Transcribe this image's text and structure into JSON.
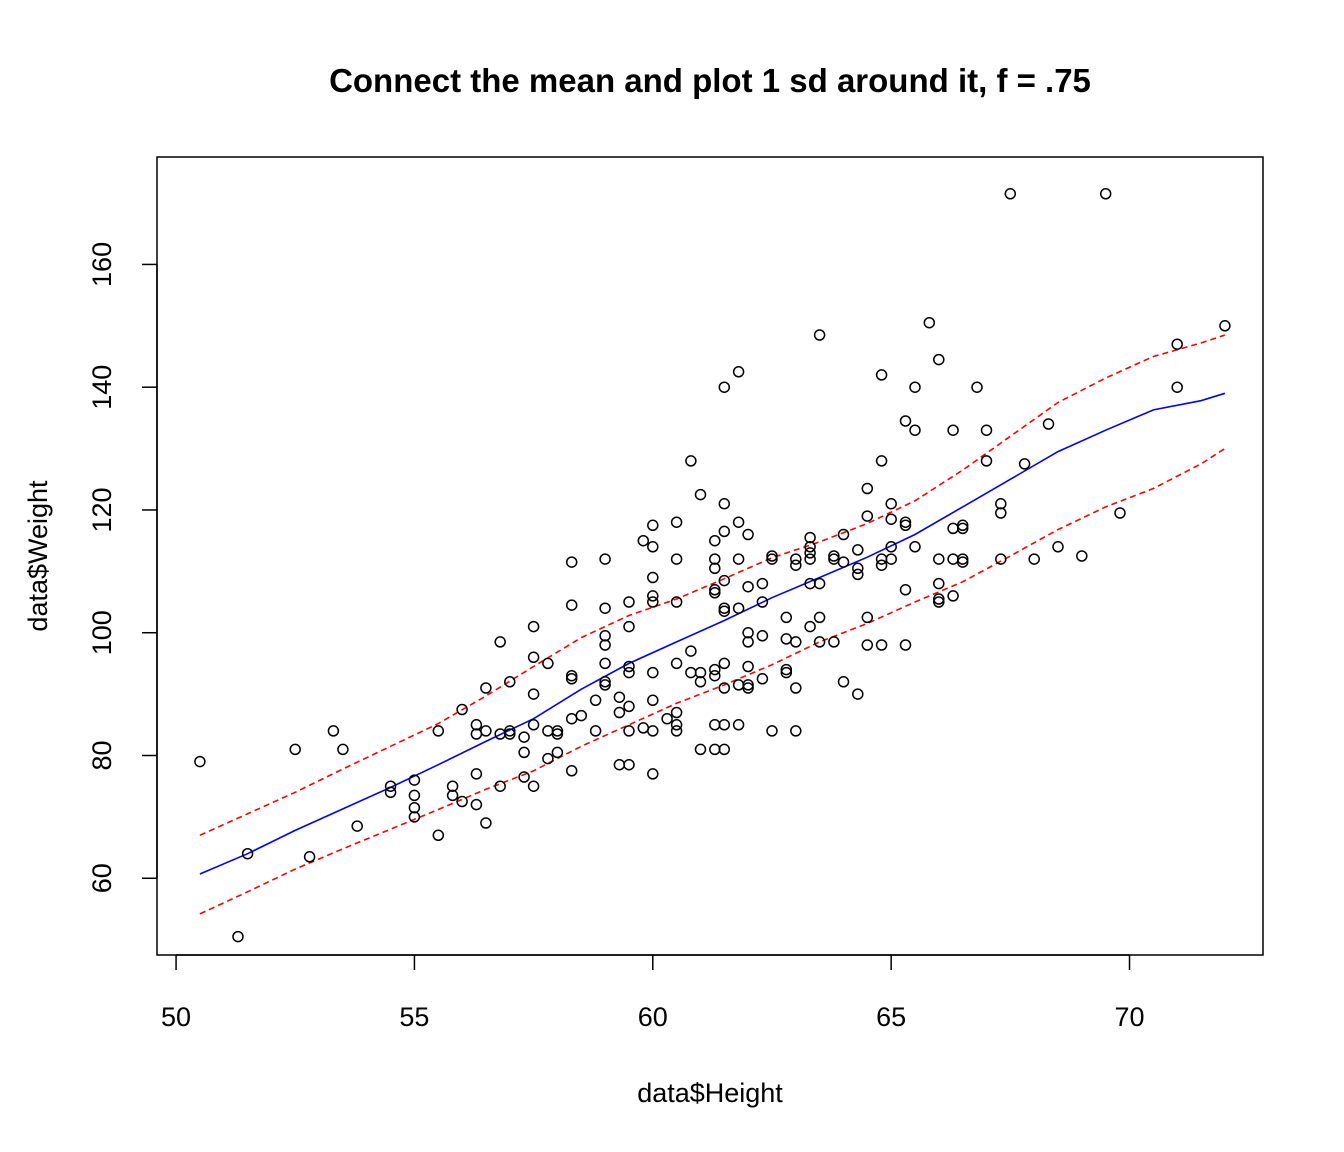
{
  "chart_data": {
    "type": "scatter",
    "title": "Connect the mean and plot 1 sd around it, f = .75",
    "xlabel": "data$Height",
    "ylabel": "data$Weight",
    "xlim": [
      49.6,
      72.8
    ],
    "ylim": [
      47.5,
      177.5
    ],
    "x_ticks": [
      50,
      55,
      60,
      65,
      70
    ],
    "y_ticks": [
      60,
      80,
      100,
      120,
      140,
      160
    ],
    "grid": false,
    "legend": "none",
    "colors": {
      "points": "#000000",
      "mean_line": "#0000FF",
      "sd_lines": "#FF0000"
    },
    "points": [
      [
        50.5,
        79
      ],
      [
        51.3,
        50.5
      ],
      [
        51.5,
        64
      ],
      [
        52.5,
        81
      ],
      [
        52.8,
        63.5
      ],
      [
        53.3,
        84
      ],
      [
        53.5,
        81
      ],
      [
        53.8,
        68.5
      ],
      [
        54.5,
        75
      ],
      [
        54.5,
        74
      ],
      [
        55,
        76
      ],
      [
        55,
        73.5
      ],
      [
        55,
        71.5
      ],
      [
        55,
        70
      ],
      [
        55.5,
        84
      ],
      [
        55.5,
        67
      ],
      [
        55.8,
        75
      ],
      [
        55.8,
        73.5
      ],
      [
        56,
        87.5
      ],
      [
        56,
        72.5
      ],
      [
        56.3,
        85
      ],
      [
        56.3,
        83.5
      ],
      [
        56.3,
        77
      ],
      [
        56.3,
        72
      ],
      [
        56.5,
        91
      ],
      [
        56.5,
        84
      ],
      [
        56.5,
        69
      ],
      [
        56.8,
        98.5
      ],
      [
        56.8,
        83.5
      ],
      [
        56.8,
        75
      ],
      [
        57,
        92
      ],
      [
        57,
        84
      ],
      [
        57,
        83.5
      ],
      [
        57.3,
        83
      ],
      [
        57.3,
        80.5
      ],
      [
        57.3,
        76.5
      ],
      [
        57.5,
        101
      ],
      [
        57.5,
        96
      ],
      [
        57.5,
        90
      ],
      [
        57.5,
        85
      ],
      [
        57.5,
        75
      ],
      [
        57.8,
        95
      ],
      [
        57.8,
        84
      ],
      [
        57.8,
        79.5
      ],
      [
        58,
        84
      ],
      [
        58,
        83.5
      ],
      [
        58,
        80.5
      ],
      [
        58.3,
        111.5
      ],
      [
        58.3,
        104.5
      ],
      [
        58.3,
        93
      ],
      [
        58.3,
        92.5
      ],
      [
        58.3,
        86
      ],
      [
        58.3,
        77.5
      ],
      [
        58.5,
        86.5
      ],
      [
        58.8,
        89
      ],
      [
        58.8,
        84
      ],
      [
        59,
        112
      ],
      [
        59,
        104
      ],
      [
        59,
        99.5
      ],
      [
        59,
        98
      ],
      [
        59,
        95
      ],
      [
        59,
        92
      ],
      [
        59,
        91.5
      ],
      [
        59.3,
        89.5
      ],
      [
        59.3,
        87
      ],
      [
        59.3,
        78.5
      ],
      [
        59.5,
        105
      ],
      [
        59.5,
        101
      ],
      [
        59.5,
        94.5
      ],
      [
        59.5,
        93.5
      ],
      [
        59.5,
        88
      ],
      [
        59.5,
        84
      ],
      [
        59.5,
        78.5
      ],
      [
        59.8,
        115
      ],
      [
        59.8,
        84.5
      ],
      [
        60,
        117.5
      ],
      [
        60,
        114
      ],
      [
        60,
        109
      ],
      [
        60,
        106
      ],
      [
        60,
        105
      ],
      [
        60,
        93.5
      ],
      [
        60,
        89
      ],
      [
        60,
        84
      ],
      [
        60,
        77
      ],
      [
        60.3,
        86
      ],
      [
        60.5,
        118
      ],
      [
        60.5,
        112
      ],
      [
        60.5,
        105
      ],
      [
        60.5,
        95
      ],
      [
        60.5,
        87
      ],
      [
        60.5,
        85
      ],
      [
        60.5,
        84
      ],
      [
        60.8,
        128
      ],
      [
        60.8,
        97
      ],
      [
        60.8,
        93.5
      ],
      [
        61,
        122.5
      ],
      [
        61,
        93.5
      ],
      [
        61,
        92
      ],
      [
        61,
        81
      ],
      [
        61.3,
        115
      ],
      [
        61.3,
        112
      ],
      [
        61.3,
        110.5
      ],
      [
        61.3,
        107
      ],
      [
        61.3,
        106.5
      ],
      [
        61.3,
        94
      ],
      [
        61.3,
        93
      ],
      [
        61.3,
        85
      ],
      [
        61.3,
        81
      ],
      [
        61.5,
        140
      ],
      [
        61.5,
        121
      ],
      [
        61.5,
        116.5
      ],
      [
        61.5,
        108.5
      ],
      [
        61.5,
        104
      ],
      [
        61.5,
        103.5
      ],
      [
        61.5,
        95
      ],
      [
        61.5,
        91
      ],
      [
        61.5,
        85
      ],
      [
        61.5,
        81
      ],
      [
        61.8,
        142.5
      ],
      [
        61.8,
        118
      ],
      [
        61.8,
        112
      ],
      [
        61.8,
        104
      ],
      [
        61.8,
        91.5
      ],
      [
        61.8,
        85
      ],
      [
        62,
        116
      ],
      [
        62,
        107.5
      ],
      [
        62,
        100
      ],
      [
        62,
        98.5
      ],
      [
        62,
        94.5
      ],
      [
        62,
        91.5
      ],
      [
        62,
        91
      ],
      [
        62.3,
        108
      ],
      [
        62.3,
        105
      ],
      [
        62.3,
        99.5
      ],
      [
        62.3,
        92.5
      ],
      [
        62.5,
        112.5
      ],
      [
        62.5,
        112
      ],
      [
        62.5,
        84
      ],
      [
        62.8,
        102.5
      ],
      [
        62.8,
        99
      ],
      [
        62.8,
        94
      ],
      [
        62.8,
        93.5
      ],
      [
        63,
        112
      ],
      [
        63,
        111
      ],
      [
        63,
        98.5
      ],
      [
        63,
        91
      ],
      [
        63,
        84
      ],
      [
        63.3,
        115.5
      ],
      [
        63.3,
        114
      ],
      [
        63.3,
        113
      ],
      [
        63.3,
        112
      ],
      [
        63.3,
        108
      ],
      [
        63.3,
        101
      ],
      [
        63.5,
        148.5
      ],
      [
        63.5,
        108
      ],
      [
        63.5,
        102.5
      ],
      [
        63.5,
        98.5
      ],
      [
        63.8,
        112.5
      ],
      [
        63.8,
        112
      ],
      [
        63.8,
        98.5
      ],
      [
        64,
        116
      ],
      [
        64,
        111.5
      ],
      [
        64,
        92
      ],
      [
        64.3,
        113.5
      ],
      [
        64.3,
        110.5
      ],
      [
        64.3,
        109.5
      ],
      [
        64.3,
        90
      ],
      [
        64.5,
        123.5
      ],
      [
        64.5,
        119
      ],
      [
        64.5,
        102.5
      ],
      [
        64.5,
        98
      ],
      [
        64.8,
        142
      ],
      [
        64.8,
        128
      ],
      [
        64.8,
        112
      ],
      [
        64.8,
        111
      ],
      [
        64.8,
        98
      ],
      [
        65,
        121
      ],
      [
        65,
        118.5
      ],
      [
        65,
        114
      ],
      [
        65,
        112
      ],
      [
        65.3,
        134.5
      ],
      [
        65.3,
        118
      ],
      [
        65.3,
        117.5
      ],
      [
        65.3,
        107
      ],
      [
        65.3,
        98
      ],
      [
        65.5,
        140
      ],
      [
        65.5,
        133
      ],
      [
        65.5,
        114
      ],
      [
        65.8,
        150.5
      ],
      [
        66,
        144.5
      ],
      [
        66,
        112
      ],
      [
        66,
        108
      ],
      [
        66,
        105.5
      ],
      [
        66,
        105
      ],
      [
        66.3,
        133
      ],
      [
        66.3,
        117
      ],
      [
        66.3,
        112
      ],
      [
        66.3,
        106
      ],
      [
        66.5,
        117.5
      ],
      [
        66.5,
        117
      ],
      [
        66.5,
        112
      ],
      [
        66.5,
        111.5
      ],
      [
        66.8,
        140
      ],
      [
        67,
        133
      ],
      [
        67,
        128
      ],
      [
        67.3,
        121
      ],
      [
        67.3,
        119.5
      ],
      [
        67.3,
        112
      ],
      [
        67.5,
        171.5
      ],
      [
        67.8,
        127.5
      ],
      [
        68,
        112
      ],
      [
        68.3,
        134
      ],
      [
        68.5,
        114
      ],
      [
        69,
        112.5
      ],
      [
        69.5,
        171.5
      ],
      [
        69.8,
        119.5
      ],
      [
        71,
        147
      ],
      [
        71,
        140
      ],
      [
        72,
        150
      ]
    ],
    "series": [
      {
        "x": [
          50.5,
          51.5,
          52.5,
          53.5,
          54.5,
          55.5,
          56.5,
          57.5,
          58.5,
          59.5,
          60.5,
          61.5,
          62.5,
          63.5,
          64.5,
          65.5,
          66.5,
          67.5,
          68.5,
          69.5,
          70.5,
          71.5,
          72
        ],
        "values": [
          60.7,
          64,
          67.8,
          71.3,
          74.8,
          78.5,
          82.3,
          86,
          90.8,
          95,
          98.5,
          102,
          105.7,
          109,
          112.3,
          116,
          120.5,
          125,
          129.5,
          133,
          136.3,
          137.8,
          139
        ]
      },
      {
        "x": [
          50.5,
          51.5,
          52.5,
          53.5,
          54.5,
          55.5,
          56.5,
          57.5,
          58.5,
          59.5,
          60.5,
          61.5,
          62.5,
          63.5,
          64.5,
          65.5,
          66.5,
          67.5,
          68.5,
          69.5,
          70.5,
          71.5,
          72
        ],
        "values": [
          67,
          70.5,
          74,
          77.8,
          81.5,
          85.2,
          89.7,
          94.5,
          99.2,
          102.8,
          105.5,
          108.8,
          112.2,
          114.8,
          117.8,
          121.5,
          126.5,
          132,
          137.5,
          141.5,
          145,
          147.2,
          148.5
        ]
      },
      {
        "x": [
          50.5,
          51.5,
          52.5,
          53.5,
          54.5,
          55.5,
          56.5,
          57.5,
          58.5,
          59.5,
          60.5,
          61.5,
          62.5,
          63.5,
          64.5,
          65.5,
          66.5,
          67.5,
          68.5,
          69.5,
          70.5,
          71.5,
          72
        ],
        "values": [
          54.2,
          57.8,
          61.5,
          64.8,
          68,
          71.2,
          74.5,
          77.5,
          81.5,
          85,
          88.5,
          91.5,
          94.8,
          98.5,
          101.5,
          105,
          108.3,
          112.5,
          116.8,
          120.5,
          123.5,
          127.5,
          130
        ]
      }
    ]
  }
}
